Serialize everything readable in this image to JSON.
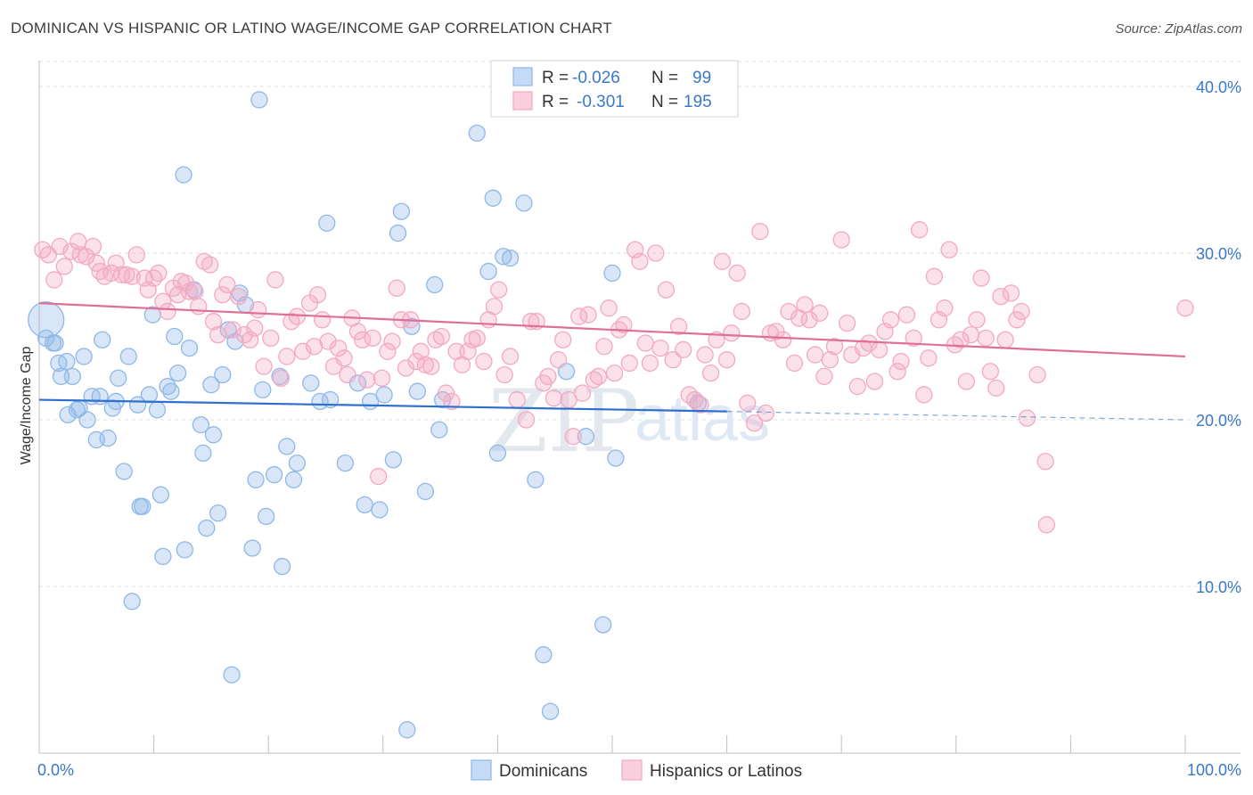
{
  "title": "DOMINICAN VS HISPANIC OR LATINO WAGE/INCOME GAP CORRELATION CHART",
  "source": "Source: ZipAtlas.com",
  "watermark": {
    "zip": "ZIP",
    "atlas": "atlas"
  },
  "chart_data": {
    "type": "scatter",
    "xlabel": "",
    "ylabel": "Wage/Income Gap",
    "xlim": [
      0,
      100
    ],
    "ylim": [
      0,
      42
    ],
    "x_tick_labels": [
      "0.0%",
      "100.0%"
    ],
    "y_ticks": [
      10,
      20,
      30,
      40
    ],
    "y_tick_labels": [
      "10.0%",
      "20.0%",
      "30.0%",
      "40.0%"
    ],
    "grid": true,
    "legend_position": "top-center",
    "legend": [
      {
        "r_label": "R =",
        "r_value": "-0.026",
        "n_label": "N =",
        "n_value": "99"
      },
      {
        "r_label": "R =",
        "r_value": "-0.301",
        "n_label": "N =",
        "n_value": "195"
      }
    ],
    "series": [
      {
        "name": "Dominicans",
        "color": "#8fb8e8",
        "line_color": "#2f6fcf",
        "trend": {
          "x0": 0,
          "y0": 21.2,
          "x1": 60,
          "y1": 20.5,
          "dash_x1": 100,
          "dash_y1": 20.0
        },
        "points": [
          [
            0.6,
            26
          ],
          [
            0.6,
            24.9
          ],
          [
            1.2,
            24.6
          ],
          [
            1.4,
            24.6
          ],
          [
            1.7,
            23.4
          ],
          [
            1.9,
            22.6
          ],
          [
            2.4,
            23.5
          ],
          [
            2.5,
            20.3
          ],
          [
            2.9,
            22.6
          ],
          [
            3.3,
            20.6
          ],
          [
            3.5,
            20.7
          ],
          [
            3.9,
            23.8
          ],
          [
            4.2,
            20.0
          ],
          [
            4.6,
            21.4
          ],
          [
            5.0,
            18.8
          ],
          [
            5.3,
            21.4
          ],
          [
            5.5,
            24.8
          ],
          [
            6.0,
            18.9
          ],
          [
            6.4,
            20.7
          ],
          [
            6.7,
            21.1
          ],
          [
            6.9,
            22.5
          ],
          [
            7.4,
            16.9
          ],
          [
            7.8,
            23.8
          ],
          [
            8.1,
            9.1
          ],
          [
            8.6,
            20.9
          ],
          [
            8.8,
            14.8
          ],
          [
            9.0,
            14.8
          ],
          [
            9.6,
            21.5
          ],
          [
            9.9,
            26.3
          ],
          [
            10.3,
            20.6
          ],
          [
            10.6,
            15.5
          ],
          [
            10.8,
            11.8
          ],
          [
            11.2,
            22.0
          ],
          [
            11.5,
            21.7
          ],
          [
            11.8,
            25.0
          ],
          [
            12.1,
            22.8
          ],
          [
            12.6,
            34.7
          ],
          [
            12.7,
            12.2
          ],
          [
            13.1,
            24.3
          ],
          [
            13.5,
            27.8
          ],
          [
            14.1,
            19.7
          ],
          [
            14.3,
            18.0
          ],
          [
            14.6,
            13.5
          ],
          [
            15.0,
            22.1
          ],
          [
            15.2,
            19.1
          ],
          [
            15.6,
            14.4
          ],
          [
            16.0,
            22.7
          ],
          [
            16.5,
            25.4
          ],
          [
            16.8,
            4.7
          ],
          [
            17.1,
            24.7
          ],
          [
            17.5,
            27.6
          ],
          [
            18.0,
            26.9
          ],
          [
            18.6,
            12.3
          ],
          [
            18.9,
            16.4
          ],
          [
            19.2,
            39.2
          ],
          [
            19.5,
            21.8
          ],
          [
            19.8,
            14.2
          ],
          [
            20.5,
            16.7
          ],
          [
            21.0,
            22.6
          ],
          [
            21.2,
            11.2
          ],
          [
            21.6,
            18.4
          ],
          [
            22.2,
            16.4
          ],
          [
            22.5,
            17.4
          ],
          [
            23.7,
            22.2
          ],
          [
            24.5,
            21.1
          ],
          [
            25.1,
            31.8
          ],
          [
            25.4,
            21.2
          ],
          [
            26.7,
            17.4
          ],
          [
            27.8,
            22.2
          ],
          [
            28.4,
            14.9
          ],
          [
            28.9,
            21.1
          ],
          [
            29.7,
            14.6
          ],
          [
            30.1,
            21.5
          ],
          [
            30.9,
            17.6
          ],
          [
            31.3,
            31.2
          ],
          [
            31.6,
            32.5
          ],
          [
            32.1,
            1.4
          ],
          [
            32.5,
            25.6
          ],
          [
            33.0,
            21.7
          ],
          [
            33.7,
            15.7
          ],
          [
            34.5,
            28.1
          ],
          [
            34.9,
            19.4
          ],
          [
            35.2,
            21.2
          ],
          [
            38.2,
            37.2
          ],
          [
            39.2,
            28.9
          ],
          [
            39.6,
            33.3
          ],
          [
            40.0,
            18.0
          ],
          [
            40.5,
            29.8
          ],
          [
            41.1,
            29.7
          ],
          [
            42.3,
            33.0
          ],
          [
            43.3,
            16.4
          ],
          [
            44.0,
            5.9
          ],
          [
            44.6,
            2.5
          ],
          [
            46.0,
            22.9
          ],
          [
            47.7,
            19.0
          ],
          [
            49.2,
            7.7
          ],
          [
            50.0,
            28.8
          ],
          [
            50.3,
            17.7
          ],
          [
            57.5,
            21.0
          ]
        ]
      },
      {
        "name": "Hispanics or Latinos",
        "color": "#f3a9c2",
        "line_color": "#e06f97",
        "trend": {
          "x0": 0,
          "y0": 27.0,
          "x1": 100,
          "y1": 23.8
        },
        "points": [
          [
            0.3,
            30.2
          ],
          [
            0.8,
            29.9
          ],
          [
            1.3,
            28.4
          ],
          [
            1.8,
            30.4
          ],
          [
            2.2,
            29.2
          ],
          [
            2.8,
            30.1
          ],
          [
            3.4,
            30.7
          ],
          [
            3.6,
            29.9
          ],
          [
            4.1,
            29.8
          ],
          [
            4.7,
            30.4
          ],
          [
            5.0,
            29.4
          ],
          [
            5.3,
            28.9
          ],
          [
            5.7,
            28.6
          ],
          [
            6.3,
            28.8
          ],
          [
            6.7,
            29.4
          ],
          [
            7.2,
            28.7
          ],
          [
            7.6,
            28.7
          ],
          [
            8.1,
            28.6
          ],
          [
            8.5,
            29.9
          ],
          [
            9.2,
            28.5
          ],
          [
            9.5,
            27.8
          ],
          [
            10.0,
            28.5
          ],
          [
            10.4,
            28.8
          ],
          [
            10.8,
            27.1
          ],
          [
            11.2,
            26.5
          ],
          [
            11.7,
            27.9
          ],
          [
            12.1,
            27.5
          ],
          [
            12.4,
            28.3
          ],
          [
            12.8,
            28.2
          ],
          [
            13.1,
            27.7
          ],
          [
            13.6,
            27.7
          ],
          [
            13.9,
            26.8
          ],
          [
            14.4,
            29.5
          ],
          [
            14.9,
            29.3
          ],
          [
            15.2,
            25.9
          ],
          [
            15.6,
            25.1
          ],
          [
            16.0,
            27.5
          ],
          [
            16.4,
            28.1
          ],
          [
            16.9,
            25.4
          ],
          [
            17.4,
            27.4
          ],
          [
            17.9,
            25.1
          ],
          [
            18.4,
            24.8
          ],
          [
            18.8,
            25.5
          ],
          [
            19.1,
            26.6
          ],
          [
            19.6,
            23.2
          ],
          [
            20.2,
            24.9
          ],
          [
            20.6,
            28.4
          ],
          [
            21.1,
            22.5
          ],
          [
            21.6,
            23.8
          ],
          [
            22.0,
            25.9
          ],
          [
            22.5,
            26.2
          ],
          [
            23.0,
            24.1
          ],
          [
            23.6,
            27.0
          ],
          [
            24.0,
            24.4
          ],
          [
            24.3,
            27.5
          ],
          [
            24.7,
            26.0
          ],
          [
            25.2,
            24.7
          ],
          [
            25.7,
            23.2
          ],
          [
            26.1,
            24.3
          ],
          [
            26.6,
            23.7
          ],
          [
            26.9,
            22.7
          ],
          [
            27.3,
            26.1
          ],
          [
            27.8,
            25.3
          ],
          [
            28.2,
            24.8
          ],
          [
            28.6,
            22.4
          ],
          [
            29.1,
            24.9
          ],
          [
            29.6,
            16.6
          ],
          [
            29.9,
            22.5
          ],
          [
            30.4,
            24.1
          ],
          [
            30.8,
            24.7
          ],
          [
            31.2,
            27.9
          ],
          [
            31.6,
            26.0
          ],
          [
            32.0,
            23.1
          ],
          [
            32.4,
            26.0
          ],
          [
            32.9,
            23.5
          ],
          [
            33.3,
            24.1
          ],
          [
            33.7,
            23.3
          ],
          [
            34.2,
            23.2
          ],
          [
            34.6,
            24.8
          ],
          [
            35.1,
            25.0
          ],
          [
            35.5,
            21.6
          ],
          [
            36.0,
            21.1
          ],
          [
            36.4,
            24.1
          ],
          [
            36.9,
            23.3
          ],
          [
            37.4,
            24.1
          ],
          [
            37.8,
            24.8
          ],
          [
            38.2,
            24.9
          ],
          [
            38.8,
            23.5
          ],
          [
            39.2,
            26.0
          ],
          [
            39.7,
            26.8
          ],
          [
            40.1,
            27.8
          ],
          [
            40.6,
            22.7
          ],
          [
            41.1,
            23.8
          ],
          [
            41.7,
            21.2
          ],
          [
            42.5,
            20.0
          ],
          [
            42.9,
            25.9
          ],
          [
            43.4,
            25.9
          ],
          [
            44.0,
            22.2
          ],
          [
            44.4,
            22.6
          ],
          [
            44.9,
            21.3
          ],
          [
            45.3,
            23.6
          ],
          [
            45.7,
            24.8
          ],
          [
            46.2,
            21.2
          ],
          [
            46.6,
            19.0
          ],
          [
            47.1,
            26.2
          ],
          [
            47.4,
            21.6
          ],
          [
            47.9,
            26.3
          ],
          [
            48.4,
            22.4
          ],
          [
            48.8,
            22.6
          ],
          [
            49.3,
            24.4
          ],
          [
            49.7,
            26.7
          ],
          [
            50.2,
            22.8
          ],
          [
            50.6,
            25.4
          ],
          [
            51.0,
            25.7
          ],
          [
            51.5,
            23.4
          ],
          [
            52.0,
            30.2
          ],
          [
            52.4,
            29.5
          ],
          [
            52.9,
            24.6
          ],
          [
            53.3,
            23.4
          ],
          [
            53.8,
            30.0
          ],
          [
            54.2,
            24.3
          ],
          [
            54.7,
            27.8
          ],
          [
            55.3,
            23.6
          ],
          [
            55.8,
            25.6
          ],
          [
            56.2,
            24.2
          ],
          [
            56.7,
            21.5
          ],
          [
            57.2,
            21.2
          ],
          [
            57.7,
            20.9
          ],
          [
            58.1,
            23.9
          ],
          [
            58.6,
            22.8
          ],
          [
            59.1,
            24.8
          ],
          [
            59.6,
            29.5
          ],
          [
            60.0,
            23.6
          ],
          [
            60.4,
            25.2
          ],
          [
            60.9,
            28.8
          ],
          [
            61.3,
            26.5
          ],
          [
            61.8,
            21.0
          ],
          [
            62.4,
            19.8
          ],
          [
            62.9,
            31.3
          ],
          [
            63.4,
            20.4
          ],
          [
            63.8,
            25.2
          ],
          [
            64.3,
            25.3
          ],
          [
            64.9,
            24.8
          ],
          [
            65.4,
            26.5
          ],
          [
            65.9,
            23.4
          ],
          [
            66.3,
            26.1
          ],
          [
            66.8,
            26.9
          ],
          [
            67.2,
            26.0
          ],
          [
            67.7,
            23.9
          ],
          [
            68.1,
            26.4
          ],
          [
            68.5,
            22.6
          ],
          [
            69.0,
            23.6
          ],
          [
            69.4,
            24.4
          ],
          [
            70.0,
            30.8
          ],
          [
            70.5,
            25.8
          ],
          [
            70.9,
            23.9
          ],
          [
            71.4,
            22.0
          ],
          [
            71.9,
            24.3
          ],
          [
            72.4,
            24.6
          ],
          [
            72.9,
            22.3
          ],
          [
            73.3,
            24.2
          ],
          [
            73.8,
            25.3
          ],
          [
            74.3,
            26.0
          ],
          [
            74.9,
            22.9
          ],
          [
            75.2,
            23.5
          ],
          [
            75.7,
            26.3
          ],
          [
            76.3,
            24.9
          ],
          [
            76.8,
            31.4
          ],
          [
            77.2,
            21.5
          ],
          [
            77.6,
            23.7
          ],
          [
            78.1,
            28.6
          ],
          [
            78.5,
            26.0
          ],
          [
            79.0,
            26.7
          ],
          [
            79.4,
            30.2
          ],
          [
            79.9,
            24.5
          ],
          [
            80.4,
            24.8
          ],
          [
            80.9,
            22.3
          ],
          [
            81.3,
            25.1
          ],
          [
            81.8,
            26.0
          ],
          [
            82.2,
            28.5
          ],
          [
            82.6,
            24.9
          ],
          [
            83.0,
            22.9
          ],
          [
            83.5,
            21.9
          ],
          [
            83.9,
            27.4
          ],
          [
            84.3,
            24.8
          ],
          [
            84.8,
            27.6
          ],
          [
            85.3,
            26.0
          ],
          [
            85.7,
            26.5
          ],
          [
            86.2,
            20.1
          ],
          [
            87.1,
            22.7
          ],
          [
            87.8,
            17.5
          ],
          [
            87.9,
            13.7
          ],
          [
            100.0,
            26.7
          ]
        ]
      }
    ]
  },
  "bottom_legend": [
    {
      "label": "Dominicans"
    },
    {
      "label": "Hispanics or Latinos"
    }
  ]
}
